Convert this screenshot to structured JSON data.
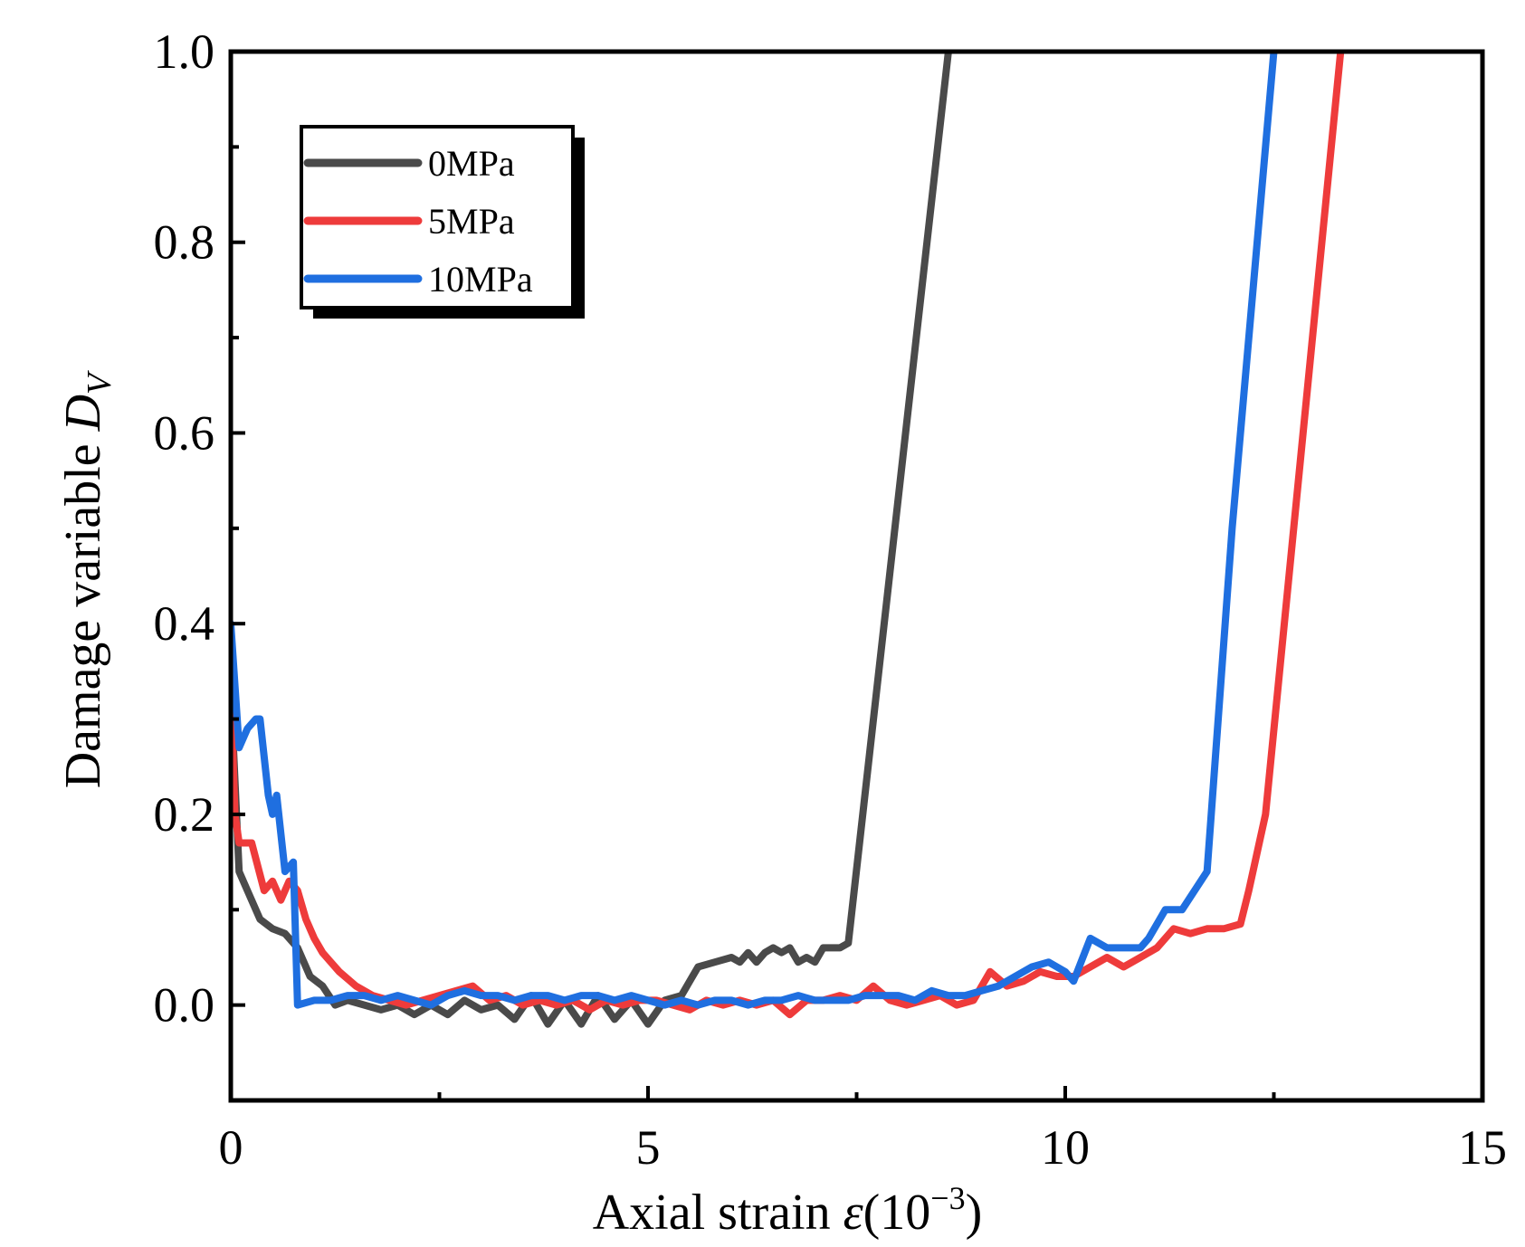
{
  "chart_data": {
    "type": "line",
    "xlabel": "Axial strain ε(10⁻³)",
    "xlabel_parts": {
      "main": "Axial strain ",
      "var": "ε",
      "open": "(10",
      "exp": "−3",
      "close": ")"
    },
    "ylabel": "Damage variable D_V",
    "ylabel_parts": {
      "main": "Damage variable ",
      "var": "D",
      "sub": "V"
    },
    "xlim": [
      0,
      15
    ],
    "ylim": [
      -0.1,
      1.0
    ],
    "xticks": [
      0,
      5,
      10,
      15
    ],
    "xtick_labels": [
      "0",
      "5",
      "10",
      "15"
    ],
    "yticks": [
      0.0,
      0.2,
      0.4,
      0.6,
      0.8,
      1.0
    ],
    "ytick_labels": [
      "0.0",
      "0.2",
      "0.4",
      "0.6",
      "0.8",
      "1.0"
    ],
    "grid": false,
    "legend_position": "top-left",
    "series": [
      {
        "name": "0MPa",
        "color": "#4a4a4a",
        "x": [
          0.0,
          0.1,
          0.2,
          0.35,
          0.5,
          0.65,
          0.8,
          0.95,
          1.1,
          1.25,
          1.4,
          1.6,
          1.8,
          2.0,
          2.2,
          2.4,
          2.6,
          2.8,
          3.0,
          3.2,
          3.4,
          3.6,
          3.8,
          4.0,
          4.2,
          4.4,
          4.6,
          4.8,
          5.0,
          5.2,
          5.4,
          5.6,
          5.8,
          6.0,
          6.1,
          6.2,
          6.3,
          6.4,
          6.5,
          6.6,
          6.7,
          6.8,
          6.9,
          7.0,
          7.1,
          7.2,
          7.3,
          7.4,
          8.6
        ],
        "y": [
          0.33,
          0.14,
          0.12,
          0.09,
          0.08,
          0.075,
          0.06,
          0.03,
          0.02,
          0.0,
          0.005,
          0.0,
          -0.005,
          0.0,
          -0.01,
          0.0,
          -0.01,
          0.005,
          -0.005,
          0.0,
          -0.015,
          0.01,
          -0.02,
          0.005,
          -0.02,
          0.01,
          -0.015,
          0.005,
          -0.02,
          0.005,
          0.01,
          0.04,
          0.045,
          0.05,
          0.045,
          0.055,
          0.045,
          0.055,
          0.06,
          0.055,
          0.06,
          0.045,
          0.05,
          0.045,
          0.06,
          0.06,
          0.06,
          0.065,
          1.0
        ]
      },
      {
        "name": "5MPa",
        "color": "#ee3b3b",
        "x": [
          0.0,
          0.05,
          0.1,
          0.25,
          0.4,
          0.5,
          0.6,
          0.7,
          0.8,
          0.9,
          1.0,
          1.1,
          1.2,
          1.3,
          1.5,
          1.7,
          1.9,
          2.1,
          2.3,
          2.5,
          2.7,
          2.9,
          3.1,
          3.3,
          3.5,
          3.7,
          3.9,
          4.1,
          4.3,
          4.5,
          4.7,
          4.9,
          5.1,
          5.3,
          5.5,
          5.7,
          5.9,
          6.1,
          6.3,
          6.5,
          6.7,
          6.9,
          7.1,
          7.3,
          7.5,
          7.7,
          7.9,
          8.1,
          8.3,
          8.5,
          8.7,
          8.9,
          9.1,
          9.3,
          9.5,
          9.7,
          9.9,
          10.1,
          10.3,
          10.5,
          10.7,
          10.9,
          11.1,
          11.3,
          11.5,
          11.7,
          11.9,
          12.1,
          12.2,
          12.4,
          13.3
        ],
        "y": [
          0.33,
          0.2,
          0.17,
          0.17,
          0.12,
          0.13,
          0.11,
          0.13,
          0.12,
          0.09,
          0.07,
          0.055,
          0.045,
          0.035,
          0.02,
          0.01,
          0.005,
          0.0,
          0.005,
          0.01,
          0.015,
          0.02,
          0.005,
          0.01,
          0.0,
          0.005,
          0.0,
          0.005,
          -0.005,
          0.005,
          0.0,
          0.005,
          0.005,
          0.0,
          -0.005,
          0.005,
          0.0,
          0.005,
          0.0,
          0.005,
          -0.01,
          0.005,
          0.005,
          0.01,
          0.005,
          0.02,
          0.005,
          0.0,
          0.005,
          0.01,
          0.0,
          0.005,
          0.035,
          0.02,
          0.025,
          0.035,
          0.03,
          0.03,
          0.04,
          0.05,
          0.04,
          0.05,
          0.06,
          0.08,
          0.075,
          0.08,
          0.08,
          0.085,
          0.12,
          0.2,
          1.0
        ]
      },
      {
        "name": "10MPa",
        "color": "#1f6fe0",
        "x": [
          0.0,
          0.1,
          0.2,
          0.3,
          0.35,
          0.45,
          0.5,
          0.55,
          0.65,
          0.75,
          0.8,
          1.0,
          1.2,
          1.4,
          1.6,
          1.8,
          2.0,
          2.2,
          2.4,
          2.6,
          2.8,
          3.0,
          3.2,
          3.4,
          3.6,
          3.8,
          4.0,
          4.2,
          4.4,
          4.6,
          4.8,
          5.0,
          5.2,
          5.4,
          5.6,
          5.8,
          6.0,
          6.2,
          6.4,
          6.6,
          6.8,
          7.0,
          7.2,
          7.4,
          7.6,
          7.8,
          8.0,
          8.2,
          8.4,
          8.6,
          8.8,
          9.0,
          9.2,
          9.4,
          9.6,
          9.8,
          10.0,
          10.1,
          10.3,
          10.5,
          10.7,
          10.9,
          11.0,
          11.2,
          11.4,
          11.7,
          12.0,
          12.5
        ],
        "y": [
          0.4,
          0.27,
          0.29,
          0.3,
          0.3,
          0.22,
          0.2,
          0.22,
          0.14,
          0.15,
          0.0,
          0.005,
          0.005,
          0.01,
          0.01,
          0.005,
          0.01,
          0.005,
          0.0,
          0.01,
          0.015,
          0.01,
          0.01,
          0.005,
          0.01,
          0.01,
          0.005,
          0.01,
          0.01,
          0.005,
          0.01,
          0.005,
          0.0,
          0.005,
          0.0,
          0.005,
          0.005,
          0.0,
          0.005,
          0.005,
          0.01,
          0.005,
          0.005,
          0.005,
          0.01,
          0.01,
          0.01,
          0.005,
          0.015,
          0.01,
          0.01,
          0.015,
          0.02,
          0.03,
          0.04,
          0.045,
          0.035,
          0.025,
          0.07,
          0.06,
          0.06,
          0.06,
          0.07,
          0.1,
          0.1,
          0.14,
          0.5,
          1.0
        ]
      }
    ]
  }
}
